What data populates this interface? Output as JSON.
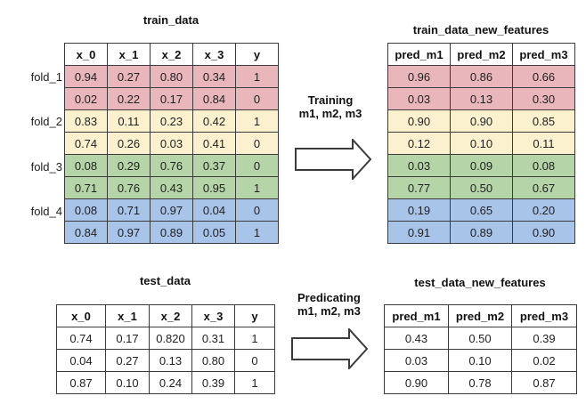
{
  "colors": {
    "fold_1": "#e9b7bb",
    "fold_2": "#fbf1ce",
    "fold_3": "#b5d5a8",
    "fold_4": "#a9c4e9",
    "plain": "#ffffff",
    "border": "#3b3b3b"
  },
  "top": {
    "train": {
      "title": "train_data",
      "fold_labels": [
        "fold_1",
        "fold_2",
        "fold_3",
        "fold_4"
      ],
      "headers": [
        "x_0",
        "x_1",
        "x_2",
        "x_3",
        "y"
      ],
      "rows": [
        {
          "color": "fold_1",
          "values": [
            "0.94",
            "0.27",
            "0.80",
            "0.34",
            "1"
          ]
        },
        {
          "color": "fold_1",
          "values": [
            "0.02",
            "0.22",
            "0.17",
            "0.84",
            "0"
          ]
        },
        {
          "color": "fold_2",
          "values": [
            "0.83",
            "0.11",
            "0.23",
            "0.42",
            "1"
          ]
        },
        {
          "color": "fold_2",
          "values": [
            "0.74",
            "0.26",
            "0.03",
            "0.41",
            "0"
          ]
        },
        {
          "color": "fold_3",
          "values": [
            "0.08",
            "0.29",
            "0.76",
            "0.37",
            "0"
          ]
        },
        {
          "color": "fold_3",
          "values": [
            "0.71",
            "0.76",
            "0.43",
            "0.95",
            "1"
          ]
        },
        {
          "color": "fold_4",
          "values": [
            "0.08",
            "0.71",
            "0.97",
            "0.04",
            "0"
          ]
        },
        {
          "color": "fold_4",
          "values": [
            "0.84",
            "0.97",
            "0.89",
            "0.05",
            "1"
          ]
        }
      ]
    },
    "arrow": {
      "line1": "Training",
      "line2": "m1, m2, m3"
    },
    "new_features": {
      "title": "train_data_new_features",
      "headers": [
        "pred_m1",
        "pred_m2",
        "pred_m3"
      ],
      "rows": [
        {
          "color": "fold_1",
          "values": [
            "0.96",
            "0.86",
            "0.66"
          ]
        },
        {
          "color": "fold_1",
          "values": [
            "0.03",
            "0.13",
            "0.30"
          ]
        },
        {
          "color": "fold_2",
          "values": [
            "0.90",
            "0.90",
            "0.85"
          ]
        },
        {
          "color": "fold_2",
          "values": [
            "0.12",
            "0.10",
            "0.11"
          ]
        },
        {
          "color": "fold_3",
          "values": [
            "0.03",
            "0.09",
            "0.08"
          ]
        },
        {
          "color": "fold_3",
          "values": [
            "0.77",
            "0.50",
            "0.67"
          ]
        },
        {
          "color": "fold_4",
          "values": [
            "0.19",
            "0.65",
            "0.20"
          ]
        },
        {
          "color": "fold_4",
          "values": [
            "0.91",
            "0.89",
            "0.90"
          ]
        }
      ]
    }
  },
  "bottom": {
    "test": {
      "title": "test_data",
      "headers": [
        "x_0",
        "x_1",
        "x_2",
        "x_3",
        "y"
      ],
      "rows": [
        {
          "color": "plain",
          "values": [
            "0.74",
            "0.17",
            "0.820",
            "0.31",
            "1"
          ]
        },
        {
          "color": "plain",
          "values": [
            "0.04",
            "0.27",
            "0.13",
            "0.80",
            "0"
          ]
        },
        {
          "color": "plain",
          "values": [
            "0.87",
            "0.10",
            "0.24",
            "0.39",
            "1"
          ]
        }
      ]
    },
    "arrow": {
      "line1": "Predicating",
      "line2": "m1, m2, m3"
    },
    "new_features": {
      "title": "test_data_new_features",
      "headers": [
        "pred_m1",
        "pred_m2",
        "pred_m3"
      ],
      "rows": [
        {
          "color": "plain",
          "values": [
            "0.43",
            "0.50",
            "0.39"
          ]
        },
        {
          "color": "plain",
          "values": [
            "0.03",
            "0.10",
            "0.02"
          ]
        },
        {
          "color": "plain",
          "values": [
            "0.90",
            "0.78",
            "0.87"
          ]
        }
      ]
    }
  }
}
